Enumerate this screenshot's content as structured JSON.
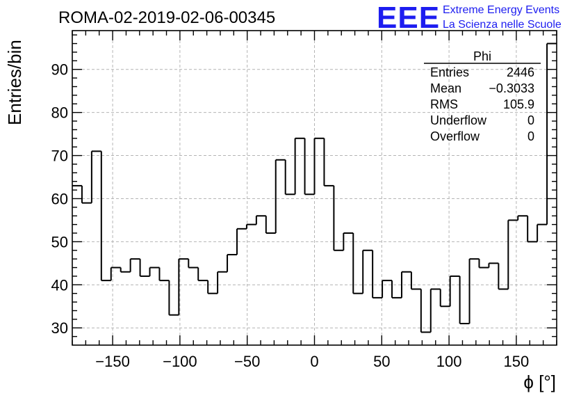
{
  "plot_title": "ROMA-02-2019-02-06-00345",
  "brand": {
    "logo": "EEE",
    "line1": "Extreme Energy Events",
    "line2": "La Scienza nelle Scuole",
    "color": "#1d1df0"
  },
  "stats": {
    "name": "Phi",
    "rows": [
      {
        "label": "Entries",
        "value": "2446"
      },
      {
        "label": "Mean",
        "value": "−0.3033"
      },
      {
        "label": "RMS",
        "value": "105.9"
      },
      {
        "label": "Underflow",
        "value": "0"
      },
      {
        "label": "Overflow",
        "value": "0"
      }
    ]
  },
  "chart_data": {
    "type": "bar",
    "style": "histogram-step",
    "title": "ROMA-02-2019-02-06-00345",
    "xlabel": "ϕ [°]",
    "ylabel": "Entries/bin",
    "xlim": [
      -180,
      180
    ],
    "ylim": [
      26,
      99
    ],
    "bin_width": 7.2,
    "x_ticks": [
      -150,
      -100,
      -50,
      0,
      50,
      100,
      150
    ],
    "x_tick_labels": [
      "−150",
      "−100",
      "−50",
      "0",
      "50",
      "100",
      "150"
    ],
    "y_ticks": [
      30,
      40,
      50,
      60,
      70,
      80,
      90
    ],
    "y_tick_labels": [
      "30",
      "40",
      "50",
      "60",
      "70",
      "80",
      "90"
    ],
    "grid": true,
    "values": [
      63,
      59,
      71,
      41,
      44,
      43,
      46,
      42,
      44,
      41,
      33,
      46,
      44,
      41,
      38,
      43,
      47,
      53,
      54,
      56,
      52,
      69,
      61,
      74,
      61,
      74,
      63,
      48,
      52,
      38,
      48,
      37,
      41,
      37,
      43,
      39,
      29,
      39,
      35,
      42,
      31,
      46,
      44,
      45,
      39,
      55,
      56,
      50,
      54,
      96
    ]
  }
}
